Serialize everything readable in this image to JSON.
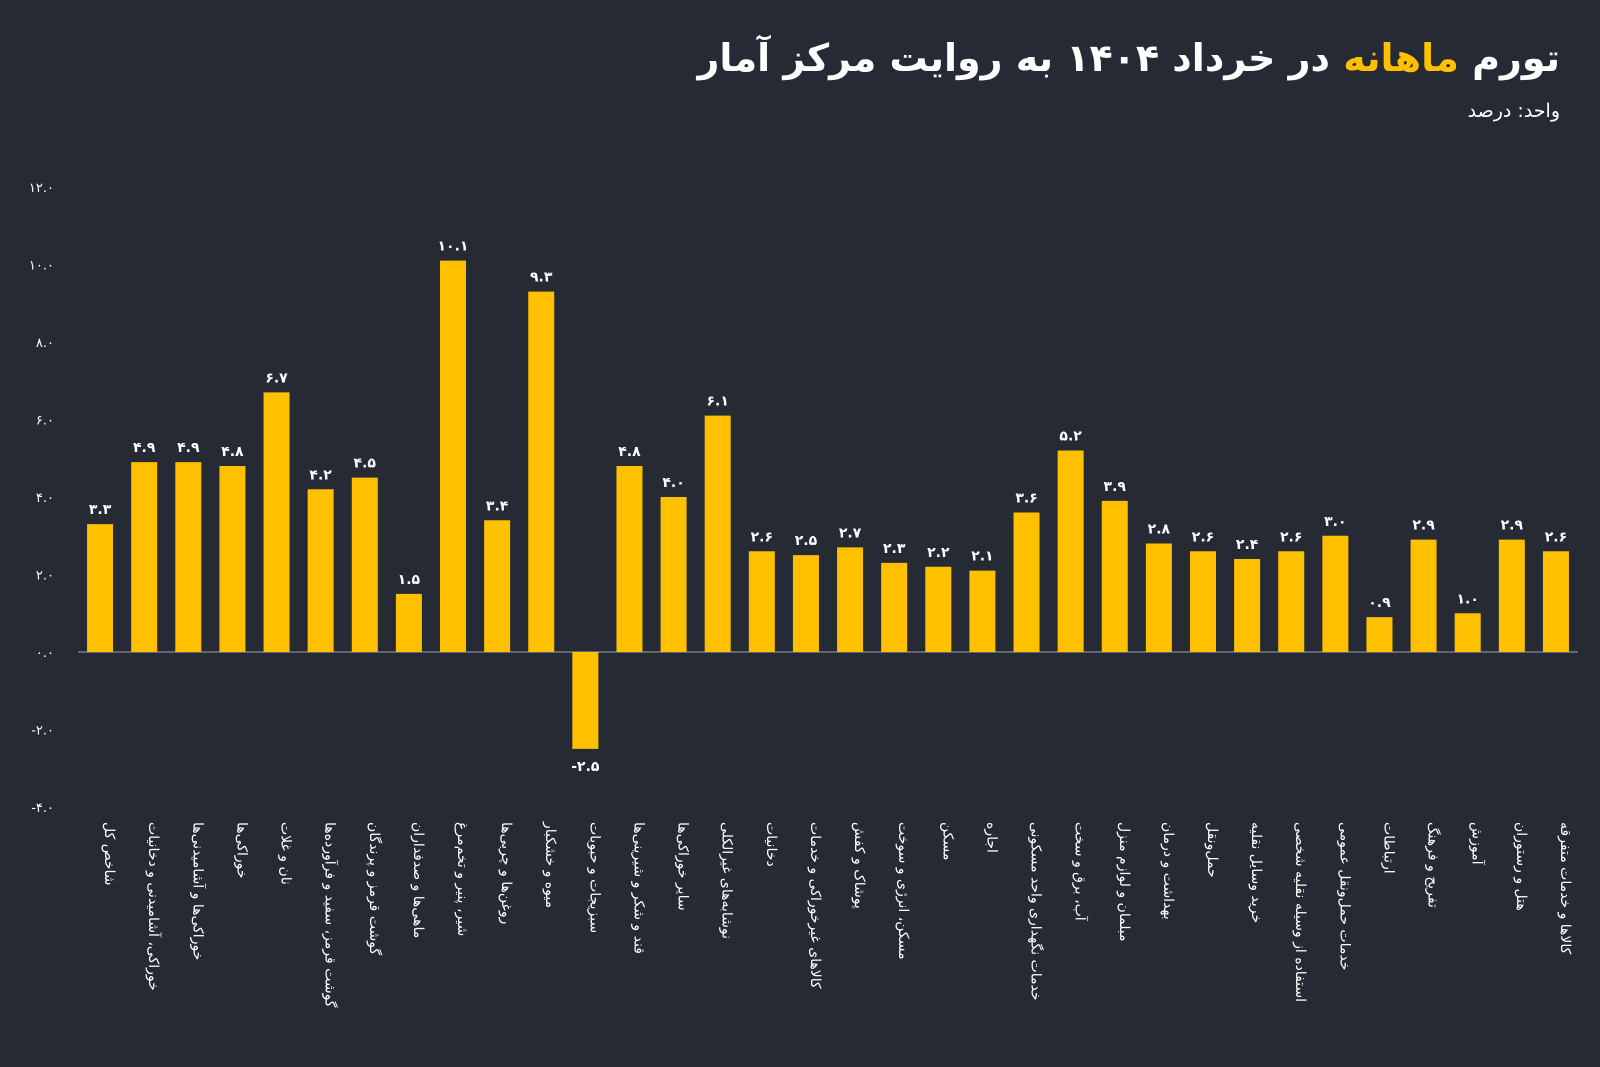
{
  "header": {
    "title_prefix": "تورم ",
    "title_highlight": "ماهانه",
    "title_suffix": " در خرداد ۱۴۰۴ به روایت مرکز آمار",
    "unit": "واحد: درصد"
  },
  "colors": {
    "background": "#252a35",
    "bar": "#ffc000",
    "text": "#ffffff",
    "axis": "#9ca3af"
  },
  "chart_data": {
    "type": "bar",
    "title": "تورم ماهانه در خرداد ۱۴۰۴ به روایت مرکز آمار",
    "ylabel": "واحد: درصد",
    "ylim": [
      -4,
      12
    ],
    "yticks": [
      12,
      10,
      8,
      6,
      4,
      2,
      0,
      -2,
      -4
    ],
    "ytick_labels": [
      "۱۲.۰",
      "۱۰.۰",
      "۸.۰",
      "۶.۰",
      "۴.۰",
      "۲.۰",
      "۰.۰",
      "-۲.۰",
      "-۴.۰"
    ],
    "grid": false,
    "categories": [
      "شاخص کل",
      "خوراکی، آشامیدنی و دخانیات",
      "خوراکی‌ها و آشامیدنی‌ها",
      "خوراکی‌ها",
      "نان و غلات",
      "گوشت قرمز، سفید و فرآورده‌ها",
      "گوشت قرمز و پرندگان",
      "ماهی‌ها و صدفداران",
      "شیر، پنیر و تخم‌مرغ",
      "روغن‌ها و چربی‌ها",
      "میوه و خشکبار",
      "سبزیجات و حبوبات",
      "قند و شکر و شیرینی‌ها",
      "سایر خوراکی‌ها",
      "نوشابه‌های غیرالکلی",
      "دخانیات",
      "کالاهای غیرخوراکی و خدمات",
      "پوشاک و کفش",
      "مسکن، انرژی و سوخت",
      "مسکن",
      "اجاره",
      "خدمات نگهداری واحد مسکونی",
      "آب، برق و سخت",
      "مبلمان و لوازم منزل",
      "بهداشت و درمان",
      "حمل‌ونقل",
      "خرید وسایل نقلیه",
      "استفاده از وسیله نقلیه شخصی",
      "خدمات حمل‌ونقل عمومی",
      "ارتباطات",
      "تفریح و فرهنگ",
      "آموزش",
      "هتل و رستوران",
      "کالاها و خدمات متفرقه"
    ],
    "values": [
      3.3,
      4.9,
      4.9,
      4.8,
      6.7,
      4.2,
      4.5,
      1.5,
      10.1,
      3.4,
      9.3,
      -2.5,
      4.8,
      4.0,
      6.1,
      2.6,
      2.5,
      2.7,
      2.3,
      2.2,
      2.1,
      3.6,
      5.2,
      3.9,
      2.8,
      2.6,
      2.4,
      2.6,
      3.0,
      0.9,
      2.9,
      1.0,
      2.9,
      2.6
    ],
    "value_labels": [
      "۳.۳",
      "۴.۹",
      "۴.۹",
      "۴.۸",
      "۶.۷",
      "۴.۲",
      "۴.۵",
      "۱.۵",
      "۱۰.۱",
      "۳.۴",
      "۹.۳",
      "-۲.۵",
      "۴.۸",
      "۴.۰",
      "۶.۱",
      "۲.۶",
      "۲.۵",
      "۲.۷",
      "۲.۳",
      "۲.۲",
      "۲.۱",
      "۳.۶",
      "۵.۲",
      "۳.۹",
      "۲.۸",
      "۲.۶",
      "۲.۴",
      "۲.۶",
      "۳.۰",
      "۰.۹",
      "۲.۹",
      "۱.۰",
      "۲.۹",
      "۲.۶"
    ]
  }
}
